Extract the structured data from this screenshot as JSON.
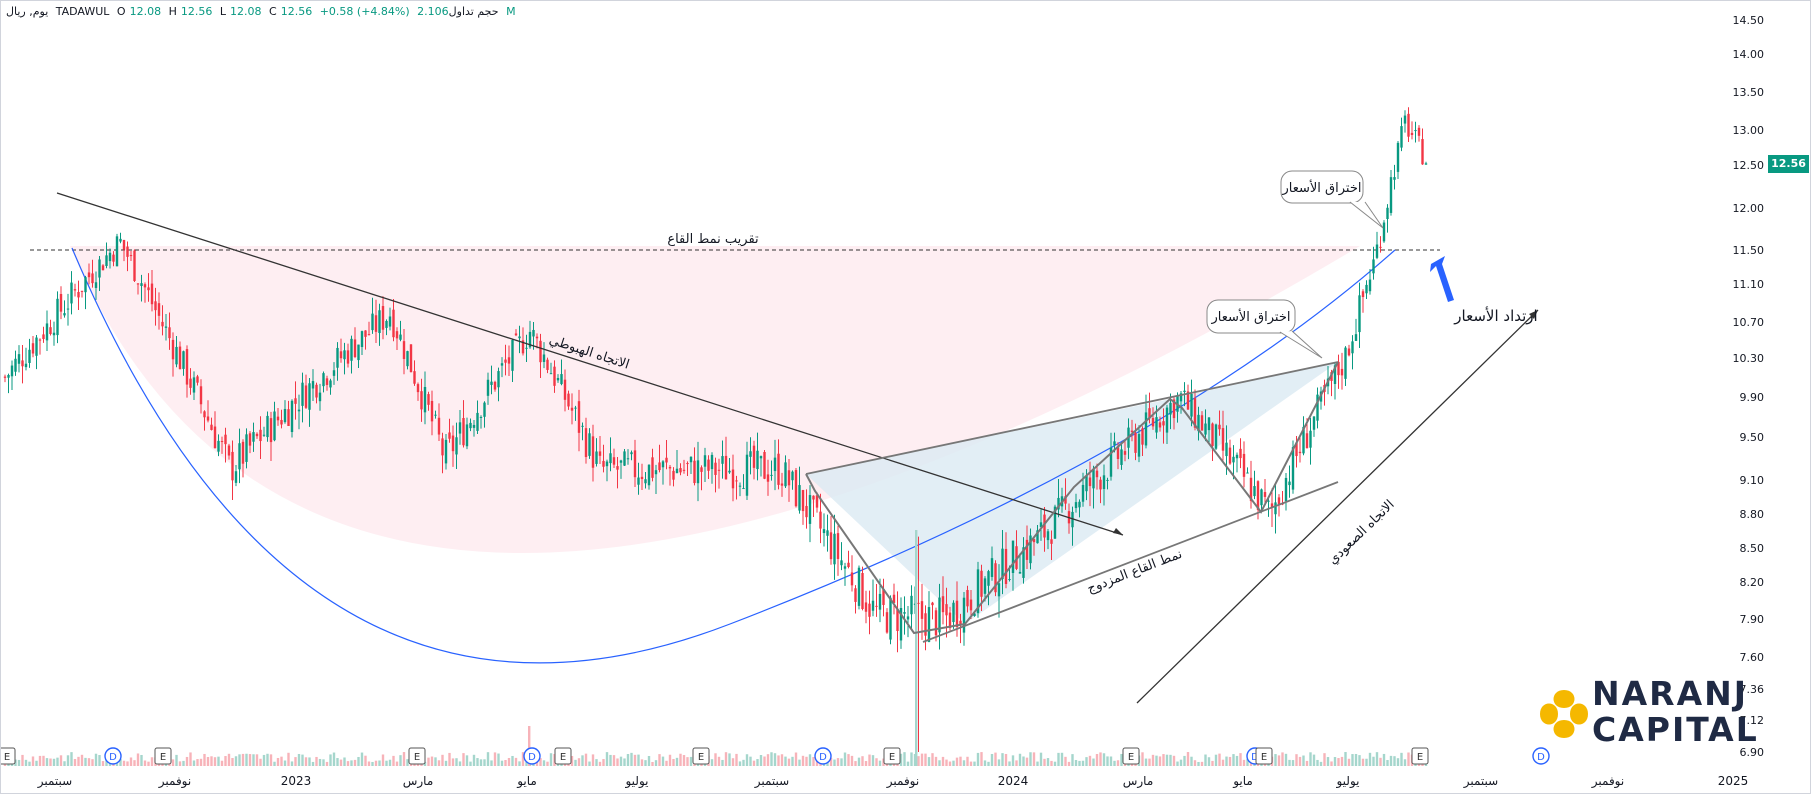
{
  "header": {
    "symbol": "يوم, ريال",
    "exchange": "TADAWUL",
    "o_label": "O",
    "o": "12.08",
    "h_label": "H",
    "h": "12.56",
    "l_label": "L",
    "l": "12.08",
    "c_label": "C",
    "c": "12.56",
    "change": "+0.58 (+4.84%)",
    "volume_label": "حجم تداول",
    "volume": "2.106 M"
  },
  "last_price": "12.56",
  "brand": {
    "line1": "NARANJ",
    "line2": "CAPITAL"
  },
  "chart_data": {
    "type": "candlestick",
    "price_ticks": [
      "14.50",
      "14.00",
      "13.50",
      "13.00",
      "12.50",
      "12.00",
      "11.50",
      "11.10",
      "10.70",
      "10.30",
      "9.90",
      "9.50",
      "9.10",
      "8.80",
      "8.50",
      "8.20",
      "7.90",
      "7.60",
      "7.36",
      "7.12",
      "6.90"
    ],
    "x_labels": [
      "سبتمبر",
      "نوفمبر",
      "2023",
      "مارس",
      "مايو",
      "يوليو",
      "سبتمبر",
      "نوفمبر",
      "2024",
      "مارس",
      "مايو",
      "يوليو",
      "سبتمبر",
      "نوفمبر",
      "2025"
    ],
    "ylim": [
      6.9,
      14.5
    ],
    "resistance_level": 11.5,
    "annotations": {
      "neckline": "تقريب نمط القاع",
      "downtrend": "الاتجاه الهبوطي",
      "double_bottom": "نمط القاع المزدوج",
      "uptrend": "الاتجاه الصعودي",
      "breakout1": "اختراق الأسعار",
      "breakout2": "اختراق الأسعار",
      "pullback": "ارتداد الأسعار"
    },
    "event_markers": [
      {
        "x_label_near": "سبتمبر",
        "type": "E"
      },
      {
        "x_label_near": "سبتمبر",
        "type": "D"
      },
      {
        "x_label_near": "نوفمبر",
        "type": "E"
      },
      {
        "x_label_near": "مارس",
        "type": "E"
      },
      {
        "x_label_near": "مايو",
        "type": "D"
      },
      {
        "x_label_near": "مايو",
        "type": "E"
      },
      {
        "x_label_near": "سبتمبر",
        "type": "E"
      },
      {
        "x_label_near": "سبتمبر",
        "type": "D"
      },
      {
        "x_label_near": "نوفمبر",
        "type": "E"
      },
      {
        "x_label_near": "مارس",
        "type": "E"
      },
      {
        "x_label_near": "مايو",
        "type": "D"
      },
      {
        "x_label_near": "مايو",
        "type": "E"
      },
      {
        "x_label_near": "يوليو",
        "type": "E"
      },
      {
        "x_label_near": "سبتمبر",
        "type": "D"
      }
    ],
    "price_path_key_points": [
      {
        "t": "سبتمبر 2022",
        "price": 10.1
      },
      {
        "t": "نوفمبر 2022",
        "price": 11.6
      },
      {
        "t": "ديسمبر 2022",
        "price": 9.2
      },
      {
        "t": "فبراير 2023",
        "price": 10.8
      },
      {
        "t": "مارس 2023",
        "price": 9.3
      },
      {
        "t": "مايو 2023",
        "price": 10.6
      },
      {
        "t": "يوليو 2023",
        "price": 9.2
      },
      {
        "t": "سبتمبر 2023",
        "price": 9.2
      },
      {
        "t": "نوفمبر 2023",
        "price": 7.95
      },
      {
        "t": "ديسمبر 2023",
        "price": 7.9
      },
      {
        "t": "يناير 2024",
        "price": 8.6
      },
      {
        "t": "مارس 2024",
        "price": 9.9
      },
      {
        "t": "مايو 2024",
        "price": 8.8
      },
      {
        "t": "يونيو 2024",
        "price": 10.3
      },
      {
        "t": "يوليو 2024",
        "price": 11.4
      },
      {
        "t": "أغسطس 2024",
        "price": 13.1
      },
      {
        "t": "أغسطس 2024",
        "price": 12.56
      }
    ],
    "colors": {
      "up": "#089981",
      "down": "#f23645",
      "curve": "#2962ff",
      "text": "#131722"
    }
  }
}
